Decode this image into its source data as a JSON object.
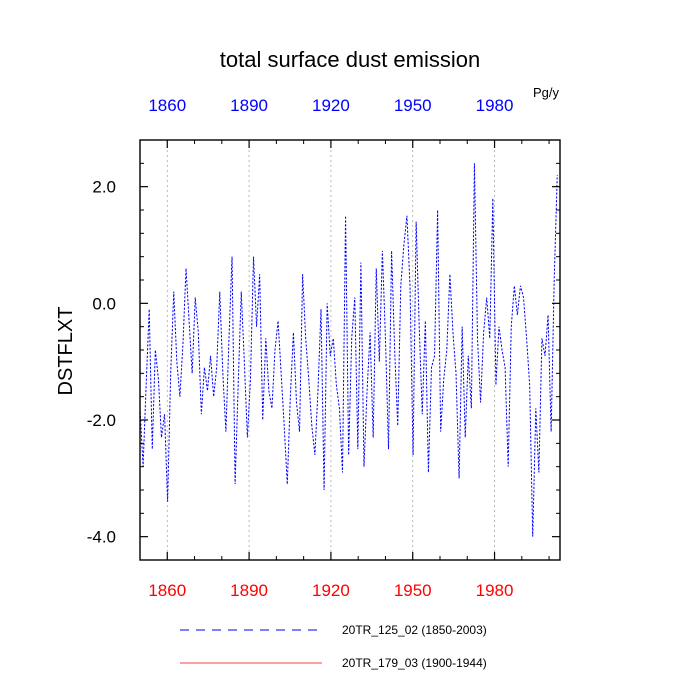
{
  "chart_data": {
    "type": "line",
    "title": "total surface dust emission",
    "units": "Pg/y",
    "ylabel": "DSTFLXT",
    "xlabel": "",
    "xlim": [
      1850,
      2004
    ],
    "ylim": [
      -4.4,
      2.8
    ],
    "x_ticks": [
      1860,
      1890,
      1920,
      1950,
      1980
    ],
    "x_tick_labels": [
      "1860",
      "1890",
      "1920",
      "1950",
      "1980"
    ],
    "y_ticks": [
      -4.0,
      -2.0,
      0.0,
      2.0
    ],
    "y_tick_labels": [
      "-4.0",
      "-2.0",
      "0.0",
      "2.0"
    ],
    "colors": {
      "series1": "#0000ff",
      "series2": "#ff0000",
      "axis": "#000000",
      "grid": "#aaaaaa",
      "bottom_ticks": "#ff0000",
      "top_ticks": "#0000ff"
    },
    "grid": "vertical-dotted",
    "legend_position": "below",
    "series": [
      {
        "name": "20TR_125_02 (1850-2003)",
        "color": "#0000ff",
        "dash": "dashed",
        "x_start": 1850,
        "x_end": 2003,
        "values": [
          -1.8,
          -2.8,
          -1.4,
          -0.1,
          -2.5,
          -0.8,
          -1.3,
          -2.3,
          -1.9,
          -3.4,
          -1.2,
          0.2,
          -1.0,
          -1.6,
          -0.7,
          0.6,
          -0.3,
          -1.2,
          0.1,
          -0.5,
          -1.9,
          -1.1,
          -1.5,
          -0.9,
          -1.6,
          -1.1,
          0.2,
          -1.2,
          -2.2,
          -0.6,
          0.8,
          -3.1,
          -1.4,
          0.2,
          -1.0,
          -2.3,
          -1.3,
          0.8,
          -0.4,
          0.5,
          -2.0,
          -0.6,
          -1.5,
          -1.8,
          -0.8,
          -0.3,
          -1.2,
          -2.1,
          -3.1,
          -1.6,
          -0.5,
          -1.7,
          -2.2,
          0.5,
          -0.6,
          -1.3,
          -2.1,
          -2.6,
          -1.5,
          -0.1,
          -3.2,
          0.0,
          -0.9,
          -0.6,
          -1.4,
          -1.8,
          -2.9,
          1.5,
          -2.6,
          -0.6,
          0.1,
          -2.5,
          0.7,
          -2.8,
          -1.5,
          -0.5,
          -2.3,
          0.6,
          -1.0,
          0.9,
          -0.6,
          -2.5,
          0.9,
          -0.8,
          -2.1,
          0.3,
          1.0,
          1.5,
          0.3,
          -2.6,
          1.4,
          -0.4,
          -1.9,
          -0.3,
          -2.9,
          -1.1,
          -0.9,
          1.6,
          -2.2,
          -1.3,
          -0.8,
          0.5,
          -0.5,
          -1.2,
          -3.0,
          -0.4,
          -2.3,
          -0.9,
          -1.8,
          2.4,
          -0.6,
          -1.7,
          -0.5,
          0.1,
          -0.6,
          1.8,
          -1.4,
          -0.4,
          -0.8,
          -1.1,
          -2.8,
          -0.4,
          0.3,
          -0.2,
          0.3,
          0.1,
          -0.6,
          -1.4,
          -4.0,
          -1.8,
          -2.9,
          -0.6,
          -0.9,
          -0.2,
          -2.2,
          0.4,
          2.2
        ],
        "extra_points": []
      },
      {
        "name": "20TR_179_03 (1900-1944)",
        "color": "#ff0000",
        "dash": "solid",
        "x_start": 1900,
        "x_end": 1944,
        "values": []
      }
    ]
  }
}
